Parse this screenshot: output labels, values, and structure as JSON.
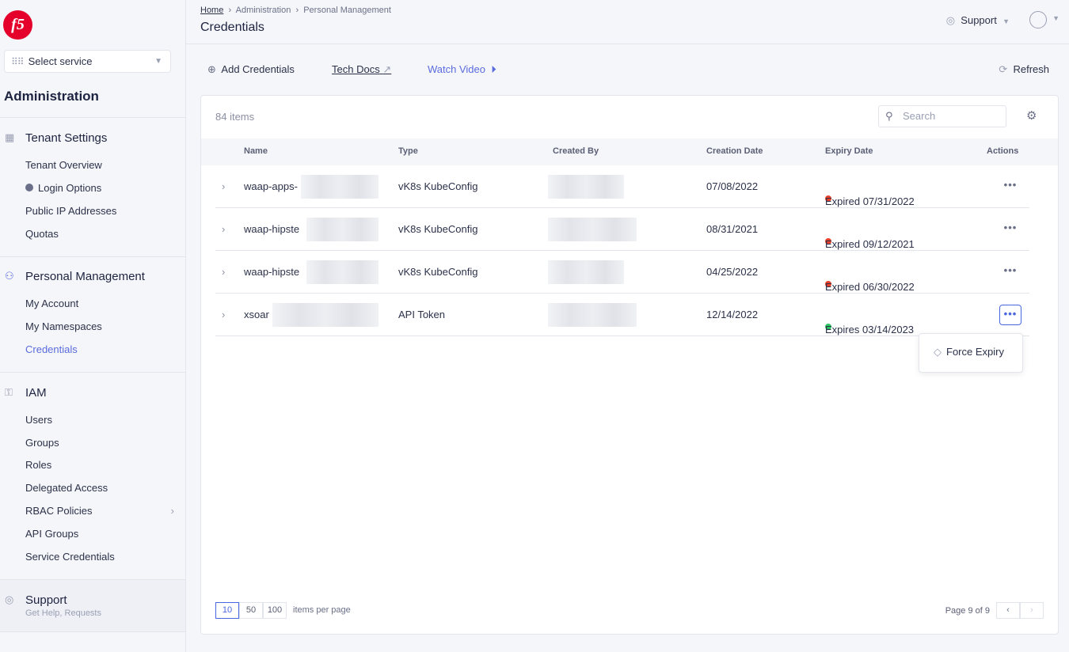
{
  "sidebar": {
    "logo": "f5",
    "service_select": "Select service",
    "section_title": "Administration",
    "groups": [
      {
        "label": "Tenant Settings",
        "items": [
          "Tenant Overview",
          "Login Options",
          "Public IP Addresses",
          "Quotas"
        ]
      },
      {
        "label": "Personal Management",
        "items": [
          "My Account",
          "My Namespaces",
          "Credentials"
        ]
      },
      {
        "label": "IAM",
        "items": [
          "Users",
          "Groups",
          "Roles",
          "Delegated Access",
          "RBAC Policies",
          "API Groups",
          "Service Credentials"
        ]
      }
    ],
    "support": {
      "label": "Support",
      "sub": "Get Help, Requests"
    }
  },
  "header": {
    "breadcrumb": [
      "Home",
      "Administration",
      "Personal Management"
    ],
    "title": "Credentials",
    "support": "Support"
  },
  "toolbar": {
    "add": "Add Credentials",
    "docs": "Tech Docs",
    "video": "Watch Video",
    "refresh": "Refresh"
  },
  "table": {
    "count": "84 items",
    "search_placeholder": "Search",
    "columns": [
      "Name",
      "Type",
      "Created By",
      "Creation Date",
      "Expiry Date",
      "Actions"
    ],
    "rows": [
      {
        "name": "waap-apps-",
        "type": "vK8s KubeConfig",
        "created": "07/08/2022",
        "expiry": "Expired 07/31/2022",
        "status": "#e8402a"
      },
      {
        "name": "waap-hipste",
        "type": "vK8s KubeConfig",
        "created": "08/31/2021",
        "expiry": "Expired 09/12/2021",
        "status": "#e8402a"
      },
      {
        "name": "waap-hipste",
        "type": "vK8s KubeConfig",
        "created": "04/25/2022",
        "expiry": "Expired 06/30/2022",
        "status": "#e8402a"
      },
      {
        "name": "xsoar",
        "type": "API Token",
        "created": "12/14/2022",
        "expiry": "Expires 03/14/2023",
        "status": "#2fc463"
      }
    ]
  },
  "menu": {
    "force_expiry": "Force Expiry"
  },
  "pagination": {
    "sizes": [
      "10",
      "50",
      "100"
    ],
    "selected": "10",
    "per_page": "items per page",
    "page": "Page 9 of 9"
  }
}
